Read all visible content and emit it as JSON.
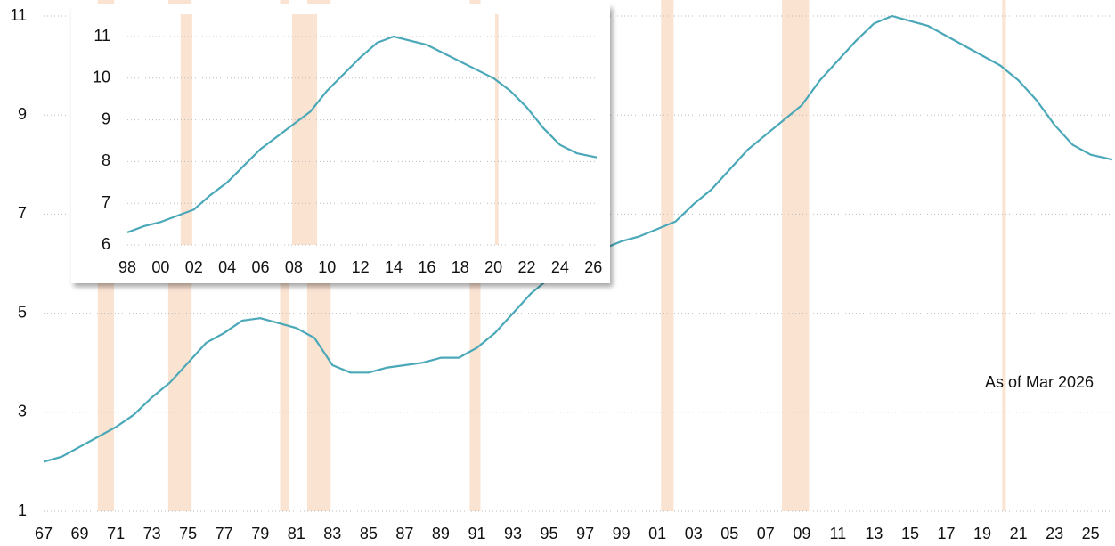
{
  "chart_data": [
    {
      "type": "line",
      "x": [
        1967,
        1968,
        1969,
        1970,
        1971,
        1972,
        1973,
        1974,
        1975,
        1976,
        1977,
        1978,
        1979,
        1980,
        1981,
        1982,
        1983,
        1984,
        1985,
        1986,
        1987,
        1988,
        1989,
        1990,
        1991,
        1992,
        1993,
        1994,
        1995,
        1996,
        1997,
        1998,
        1999,
        2000,
        2001,
        2002,
        2003,
        2004,
        2005,
        2006,
        2007,
        2008,
        2009,
        2010,
        2011,
        2012,
        2013,
        2014,
        2015,
        2016,
        2017,
        2018,
        2019,
        2020,
        2021,
        2022,
        2023,
        2024,
        2025,
        2026.2
      ],
      "series": [
        {
          "color": "#4aa8b8",
          "values": [
            2.0,
            2.1,
            2.3,
            2.5,
            2.7,
            2.95,
            3.3,
            3.6,
            4.0,
            4.4,
            4.6,
            4.85,
            4.9,
            4.8,
            4.7,
            4.5,
            3.95,
            3.8,
            3.8,
            3.9,
            3.95,
            4.0,
            4.1,
            4.1,
            4.3,
            4.6,
            5.0,
            5.4,
            5.7,
            6.0,
            6.2,
            6.3,
            6.45,
            6.55,
            6.7,
            6.85,
            7.2,
            7.5,
            7.9,
            8.3,
            8.6,
            8.9,
            9.2,
            9.7,
            10.1,
            10.5,
            10.85,
            11.0,
            10.9,
            10.8,
            10.6,
            10.4,
            10.2,
            10.0,
            9.7,
            9.3,
            8.8,
            8.4,
            8.2,
            8.1
          ]
        }
      ],
      "recessions": [
        [
          1970.0,
          1970.9
        ],
        [
          1973.9,
          1975.2
        ],
        [
          1980.1,
          1980.6
        ],
        [
          1981.6,
          1982.9
        ],
        [
          1990.6,
          1991.2
        ],
        [
          2001.2,
          2001.9
        ],
        [
          2007.9,
          2009.4
        ],
        [
          2020.1,
          2020.3
        ]
      ],
      "recession_color": "#fbe3d2",
      "xlim": [
        1967,
        2026.2
      ],
      "xticks": [
        {
          "value": 1967,
          "label": "67"
        },
        {
          "value": 1969,
          "label": "69"
        },
        {
          "value": 1971,
          "label": "71"
        },
        {
          "value": 1973,
          "label": "73"
        },
        {
          "value": 1975,
          "label": "75"
        },
        {
          "value": 1977,
          "label": "77"
        },
        {
          "value": 1979,
          "label": "79"
        },
        {
          "value": 1981,
          "label": "81"
        },
        {
          "value": 1983,
          "label": "83"
        },
        {
          "value": 1985,
          "label": "85"
        },
        {
          "value": 1987,
          "label": "87"
        },
        {
          "value": 1989,
          "label": "89"
        },
        {
          "value": 1991,
          "label": "91"
        },
        {
          "value": 1993,
          "label": "93"
        },
        {
          "value": 1995,
          "label": "95"
        },
        {
          "value": 1997,
          "label": "97"
        },
        {
          "value": 1999,
          "label": "99"
        },
        {
          "value": 2001,
          "label": "01"
        },
        {
          "value": 2003,
          "label": "03"
        },
        {
          "value": 2005,
          "label": "05"
        },
        {
          "value": 2007,
          "label": "07"
        },
        {
          "value": 2009,
          "label": "09"
        },
        {
          "value": 2011,
          "label": "11"
        },
        {
          "value": 2013,
          "label": "13"
        },
        {
          "value": 2015,
          "label": "15"
        },
        {
          "value": 2017,
          "label": "17"
        },
        {
          "value": 2019,
          "label": "19"
        },
        {
          "value": 2021,
          "label": "21"
        },
        {
          "value": 2023,
          "label": "23"
        },
        {
          "value": 2025,
          "label": "25"
        }
      ],
      "ylim": [
        1,
        11
      ],
      "yticks": [
        1,
        3,
        5,
        7,
        9,
        11
      ],
      "grid": true,
      "annotation": "As of Mar 2026"
    },
    {
      "type": "line",
      "x": [
        1998,
        1999,
        2000,
        2001,
        2002,
        2003,
        2004,
        2005,
        2006,
        2007,
        2008,
        2009,
        2010,
        2011,
        2012,
        2013,
        2014,
        2015,
        2016,
        2017,
        2018,
        2019,
        2020,
        2021,
        2022,
        2023,
        2024,
        2025,
        2026.2
      ],
      "series": [
        {
          "color": "#4aa8b8",
          "values": [
            6.3,
            6.45,
            6.55,
            6.7,
            6.85,
            7.2,
            7.5,
            7.9,
            8.3,
            8.6,
            8.9,
            9.2,
            9.7,
            10.1,
            10.5,
            10.85,
            11.0,
            10.9,
            10.8,
            10.6,
            10.4,
            10.2,
            10.0,
            9.7,
            9.3,
            8.8,
            8.4,
            8.2,
            8.1
          ]
        }
      ],
      "recessions": [
        [
          2001.2,
          2001.9
        ],
        [
          2007.9,
          2009.4
        ],
        [
          2020.1,
          2020.3
        ]
      ],
      "recession_color": "#fbe3d2",
      "xlim": [
        1998,
        2026.2
      ],
      "xticks": [
        {
          "value": 1998,
          "label": "98"
        },
        {
          "value": 2000,
          "label": "00"
        },
        {
          "value": 2002,
          "label": "02"
        },
        {
          "value": 2004,
          "label": "04"
        },
        {
          "value": 2006,
          "label": "06"
        },
        {
          "value": 2008,
          "label": "08"
        },
        {
          "value": 2010,
          "label": "10"
        },
        {
          "value": 2012,
          "label": "12"
        },
        {
          "value": 2014,
          "label": "14"
        },
        {
          "value": 2016,
          "label": "16"
        },
        {
          "value": 2018,
          "label": "18"
        },
        {
          "value": 2020,
          "label": "20"
        },
        {
          "value": 2022,
          "label": "22"
        },
        {
          "value": 2024,
          "label": "24"
        },
        {
          "value": 2026,
          "label": "26"
        }
      ],
      "ylim": [
        6,
        11
      ],
      "yticks": [
        6,
        7,
        8,
        9,
        10,
        11
      ],
      "grid": true
    }
  ]
}
